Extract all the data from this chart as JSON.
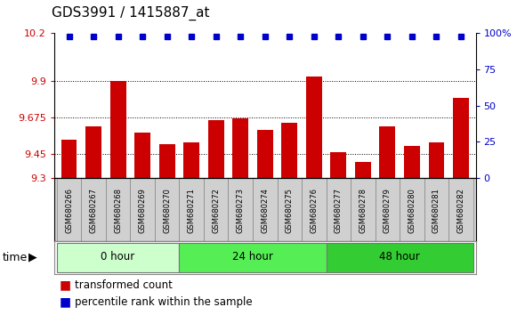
{
  "title": "GDS3991 / 1415887_at",
  "samples": [
    "GSM680266",
    "GSM680267",
    "GSM680268",
    "GSM680269",
    "GSM680270",
    "GSM680271",
    "GSM680272",
    "GSM680273",
    "GSM680274",
    "GSM680275",
    "GSM680276",
    "GSM680277",
    "GSM680278",
    "GSM680279",
    "GSM680280",
    "GSM680281",
    "GSM680282"
  ],
  "bar_values": [
    9.54,
    9.62,
    9.9,
    9.58,
    9.51,
    9.52,
    9.66,
    9.67,
    9.6,
    9.64,
    9.93,
    9.46,
    9.4,
    9.62,
    9.5,
    9.52,
    9.8
  ],
  "bar_color": "#cc0000",
  "percentile_color": "#0000cc",
  "ylim_left": [
    9.3,
    10.2
  ],
  "ylim_right": [
    0,
    100
  ],
  "yticks_left": [
    9.3,
    9.45,
    9.675,
    9.9,
    10.2
  ],
  "ytick_labels_left": [
    "9.3",
    "9.45",
    "9.675",
    "9.9",
    "10.2"
  ],
  "yticks_right": [
    0,
    25,
    50,
    75,
    100
  ],
  "ytick_labels_right": [
    "0",
    "25",
    "50",
    "75",
    "100%"
  ],
  "groups": [
    {
      "label": "0 hour",
      "start": 0,
      "end": 4,
      "color": "#ccffcc"
    },
    {
      "label": "24 hour",
      "start": 5,
      "end": 10,
      "color": "#55ee55"
    },
    {
      "label": "48 hour",
      "start": 11,
      "end": 16,
      "color": "#33cc33"
    }
  ],
  "dotted_yticks": [
    9.45,
    9.675,
    9.9
  ],
  "tick_label_color_left": "#cc0000",
  "tick_label_color_right": "#0000cc",
  "title_fontsize": 11,
  "axis_fontsize": 8,
  "legend_fontsize": 8.5,
  "bar_width": 0.65,
  "xtick_bg_color": "#d0d0d0",
  "sample_label_fontsize": 6.0
}
